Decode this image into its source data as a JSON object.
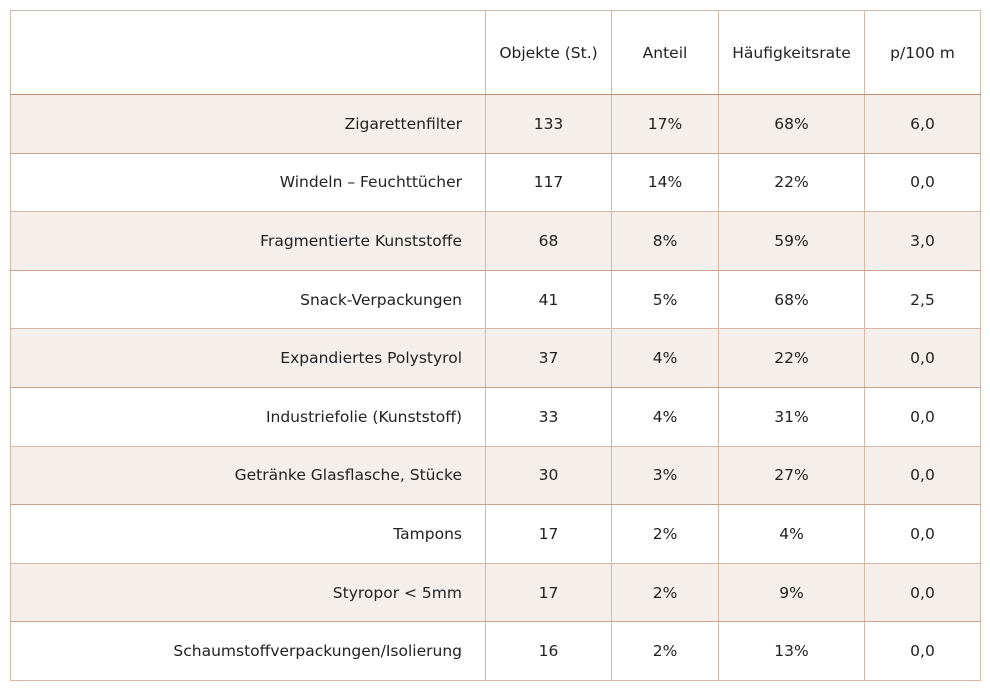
{
  "table": {
    "headers": [
      "",
      "Objekte (St.)",
      "Anteil",
      "Häufigkeitsrate",
      "p/100 m"
    ],
    "rows": [
      {
        "label": "Zigarettenfilter",
        "objekte": "133",
        "anteil": "17%",
        "haeufigkeit": "68%",
        "p100m": "6,0"
      },
      {
        "label": "Windeln – Feuchttücher",
        "objekte": "117",
        "anteil": "14%",
        "haeufigkeit": "22%",
        "p100m": "0,0"
      },
      {
        "label": "Fragmentierte Kunststoffe",
        "objekte": "68",
        "anteil": "8%",
        "haeufigkeit": "59%",
        "p100m": "3,0"
      },
      {
        "label": "Snack-Verpackungen",
        "objekte": "41",
        "anteil": "5%",
        "haeufigkeit": "68%",
        "p100m": "2,5"
      },
      {
        "label": "Expandiertes Polystyrol",
        "objekte": "37",
        "anteil": "4%",
        "haeufigkeit": "22%",
        "p100m": "0,0"
      },
      {
        "label": "Industriefolie (Kunststoff)",
        "objekte": "33",
        "anteil": "4%",
        "haeufigkeit": "31%",
        "p100m": "0,0"
      },
      {
        "label": "Getränke Glasflasche, Stücke",
        "objekte": "30",
        "anteil": "3%",
        "haeufigkeit": "27%",
        "p100m": "0,0"
      },
      {
        "label": "Tampons",
        "objekte": "17",
        "anteil": "2%",
        "haeufigkeit": "4%",
        "p100m": "0,0"
      },
      {
        "label": "Styropor < 5mm",
        "objekte": "17",
        "anteil": "2%",
        "haeufigkeit": "9%",
        "p100m": "0,0"
      },
      {
        "label": "Schaumstoffverpackungen/Isolierung",
        "objekte": "16",
        "anteil": "2%",
        "haeufigkeit": "13%",
        "p100m": "0,0"
      }
    ]
  },
  "colors": {
    "band": "#f4efeb",
    "border_light": "#d4b8a8",
    "border_dark": "#b98b70",
    "text": "#222222"
  }
}
